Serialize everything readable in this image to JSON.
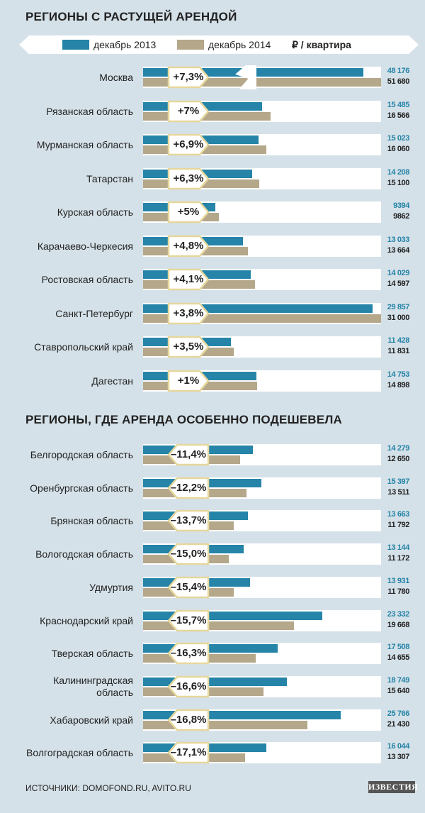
{
  "chart_data": [
    {
      "type": "bar",
      "title": "РЕГИОНЫ С РАСТУЩЕЙ АРЕНДОЙ",
      "unit": "₽ / квартира",
      "series_names": [
        "декабрь 2013",
        "декабрь 2014"
      ],
      "colors": {
        "dec2013": "#2584a8",
        "dec2014": "#b4a78a"
      },
      "rows": [
        {
          "region": "Москва",
          "change": "+7,3%",
          "dec2013": 48176,
          "dec2014": 51680,
          "dec2013_label": "48 176",
          "dec2014_label": "51 680",
          "axis_break": true
        },
        {
          "region": "Рязанская область",
          "change": "+7%",
          "dec2013": 15485,
          "dec2014": 16566,
          "dec2013_label": "15 485",
          "dec2014_label": "16 566"
        },
        {
          "region": "Мурманская область",
          "change": "+6,9%",
          "dec2013": 15023,
          "dec2014": 16060,
          "dec2013_label": "15 023",
          "dec2014_label": "16 060"
        },
        {
          "region": "Татарстан",
          "change": "+6,3%",
          "dec2013": 14208,
          "dec2014": 15100,
          "dec2013_label": "14 208",
          "dec2014_label": "15 100"
        },
        {
          "region": "Курская область",
          "change": "+5%",
          "dec2013": 9394,
          "dec2014": 9862,
          "dec2013_label": "9394",
          "dec2014_label": "9862"
        },
        {
          "region": "Карачаево-Черкесия",
          "change": "+4,8%",
          "dec2013": 13033,
          "dec2014": 13664,
          "dec2013_label": "13 033",
          "dec2014_label": "13 664"
        },
        {
          "region": "Ростовская область",
          "change": "+4,1%",
          "dec2013": 14029,
          "dec2014": 14597,
          "dec2013_label": "14 029",
          "dec2014_label": "14 597"
        },
        {
          "region": "Санкт-Петербург",
          "change": "+3,8%",
          "dec2013": 29857,
          "dec2014": 31000,
          "dec2013_label": "29 857",
          "dec2014_label": "31 000"
        },
        {
          "region": "Ставропольский край",
          "change": "+3,5%",
          "dec2013": 11428,
          "dec2014": 11831,
          "dec2013_label": "11 428",
          "dec2014_label": "11 831"
        },
        {
          "region": "Дагестан",
          "change": "+1%",
          "dec2013": 14753,
          "dec2014": 14898,
          "dec2013_label": "14 753",
          "dec2014_label": "14 898"
        }
      ]
    },
    {
      "type": "bar",
      "title": "РЕГИОНЫ, ГДЕ АРЕНДА ОСОБЕННО ПОДЕШЕВЕЛА",
      "unit": "₽ / квартира",
      "series_names": [
        "декабрь 2013",
        "декабрь 2014"
      ],
      "rows": [
        {
          "region": "Белгородская область",
          "change": "–11,4%",
          "dec2013": 14279,
          "dec2014": 12650,
          "dec2013_label": "14 279",
          "dec2014_label": "12 650"
        },
        {
          "region": "Оренбургская область",
          "change": "–12,2%",
          "dec2013": 15397,
          "dec2014": 13511,
          "dec2013_label": "15 397",
          "dec2014_label": "13 511"
        },
        {
          "region": "Брянская область",
          "change": "–13,7%",
          "dec2013": 13663,
          "dec2014": 11792,
          "dec2013_label": "13 663",
          "dec2014_label": "11 792"
        },
        {
          "region": "Вологодская область",
          "change": "–15,0%",
          "dec2013": 13144,
          "dec2014": 11172,
          "dec2013_label": "13 144",
          "dec2014_label": "11 172"
        },
        {
          "region": "Удмуртия",
          "change": "–15,4%",
          "dec2013": 13931,
          "dec2014": 11780,
          "dec2013_label": "13 931",
          "dec2014_label": "11 780"
        },
        {
          "region": "Краснодарский край",
          "change": "–15,7%",
          "dec2013": 23332,
          "dec2014": 19668,
          "dec2013_label": "23 332",
          "dec2014_label": "19 668"
        },
        {
          "region": "Тверская область",
          "change": "–16,3%",
          "dec2013": 17508,
          "dec2014": 14655,
          "dec2013_label": "17 508",
          "dec2014_label": "14 655"
        },
        {
          "region": "Калининградская\nобласть",
          "change": "–16,6%",
          "dec2013": 18749,
          "dec2014": 15640,
          "dec2013_label": "18 749",
          "dec2014_label": "15 640"
        },
        {
          "region": "Хабаровский край",
          "change": "–16,8%",
          "dec2013": 25766,
          "dec2014": 21430,
          "dec2013_label": "25 766",
          "dec2014_label": "21 430"
        },
        {
          "region": "Волгоградская область",
          "change": "–17,1%",
          "dec2013": 16044,
          "dec2014": 13307,
          "dec2013_label": "16 044",
          "dec2014_label": "13 307"
        }
      ]
    }
  ],
  "legend": {
    "dec2013": "декабрь 2013",
    "dec2014": "декабрь 2014",
    "unit": "₽ / квартира"
  },
  "footer": {
    "sources": "ИСТОЧНИКИ: DOMOFOND.RU, AVITO.RU",
    "logo": "ИЗВЕСТИЯ"
  }
}
